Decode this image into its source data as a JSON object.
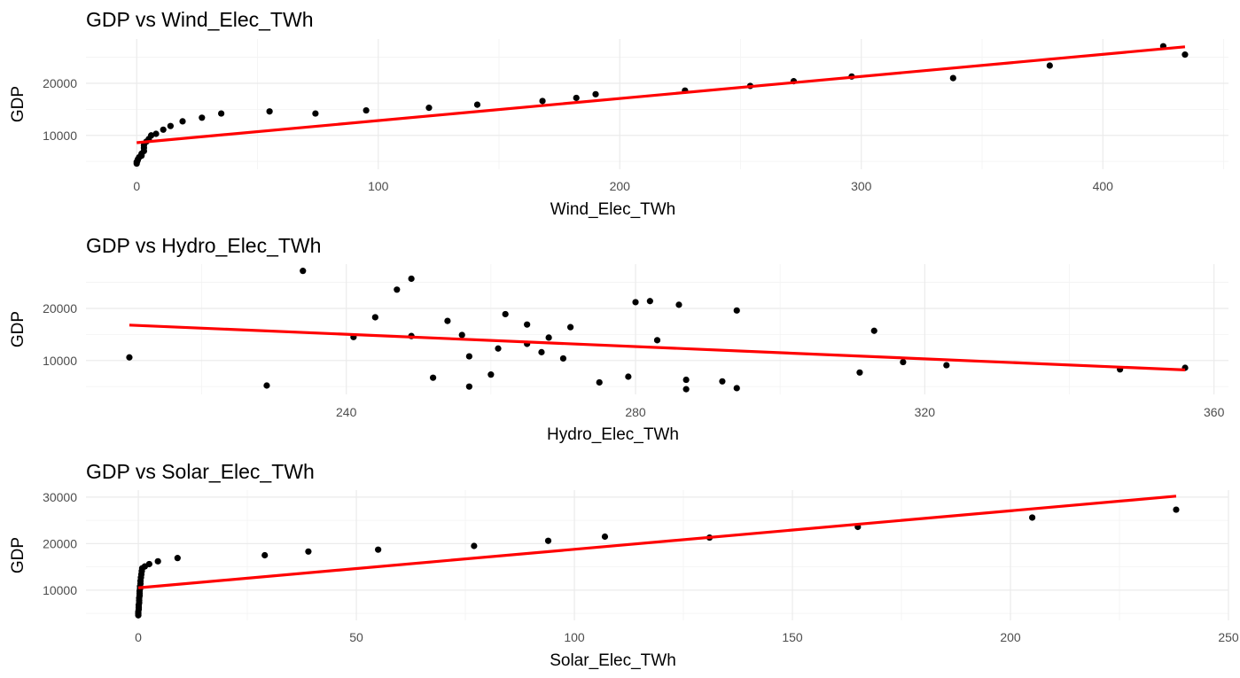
{
  "chart_data": [
    {
      "type": "scatter",
      "title": "GDP vs Wind_Elec_TWh",
      "xlabel": "Wind_Elec_TWh",
      "ylabel": "GDP",
      "x_ticks": [
        0,
        100,
        200,
        300,
        400
      ],
      "x_tick_labels": [
        "0",
        "100",
        "200",
        "300",
        "400"
      ],
      "y_ticks": [
        10000,
        20000
      ],
      "y_tick_labels": [
        "10000",
        "20000"
      ],
      "xlim": [
        -21,
        452
      ],
      "ylim": [
        3500,
        28500
      ],
      "grid": true,
      "point_color": "#000000",
      "points": [
        [
          0,
          4600
        ],
        [
          0,
          4900
        ],
        [
          0.3,
          5100
        ],
        [
          0.5,
          5400
        ],
        [
          1,
          5800
        ],
        [
          2,
          6100
        ],
        [
          2,
          6500
        ],
        [
          3,
          7000
        ],
        [
          3,
          7600
        ],
        [
          3,
          8100
        ],
        [
          4,
          8800
        ],
        [
          5,
          9300
        ],
        [
          6,
          10000
        ],
        [
          8,
          10300
        ],
        [
          11,
          11100
        ],
        [
          14,
          11800
        ],
        [
          19,
          12700
        ],
        [
          27,
          13400
        ],
        [
          35,
          14200
        ],
        [
          55,
          14600
        ],
        [
          74,
          14200
        ],
        [
          95,
          14800
        ],
        [
          121,
          15300
        ],
        [
          141,
          15900
        ],
        [
          168,
          16600
        ],
        [
          182,
          17200
        ],
        [
          190,
          17900
        ],
        [
          227,
          18600
        ],
        [
          254,
          19500
        ],
        [
          272,
          20400
        ],
        [
          296,
          21300
        ],
        [
          338,
          21000
        ],
        [
          378,
          23400
        ],
        [
          425,
          27100
        ],
        [
          434,
          25500
        ]
      ],
      "fit": {
        "x": [
          0,
          434
        ],
        "y": [
          8600,
          27000
        ],
        "color": "#ff0000"
      }
    },
    {
      "type": "scatter",
      "title": "GDP vs Hydro_Elec_TWh",
      "xlabel": "Hydro_Elec_TWh",
      "ylabel": "GDP",
      "x_ticks": [
        240,
        280,
        320,
        360
      ],
      "x_tick_labels": [
        "240",
        "280",
        "320",
        "360"
      ],
      "y_ticks": [
        10000,
        20000
      ],
      "y_tick_labels": [
        "10000",
        "20000"
      ],
      "xlim": [
        204,
        362
      ],
      "ylim": [
        3500,
        28500
      ],
      "grid": true,
      "point_color": "#000000",
      "points": [
        [
          210,
          10600
        ],
        [
          229,
          5200
        ],
        [
          234,
          27200
        ],
        [
          241,
          14500
        ],
        [
          244,
          18300
        ],
        [
          247,
          23600
        ],
        [
          249,
          25700
        ],
        [
          249,
          14700
        ],
        [
          252,
          6700
        ],
        [
          254,
          17600
        ],
        [
          256,
          14900
        ],
        [
          257,
          10800
        ],
        [
          257,
          5000
        ],
        [
          260,
          7300
        ],
        [
          261,
          12300
        ],
        [
          262,
          18900
        ],
        [
          265,
          16900
        ],
        [
          265,
          13200
        ],
        [
          267,
          11600
        ],
        [
          268,
          14400
        ],
        [
          270,
          10400
        ],
        [
          271,
          16400
        ],
        [
          275,
          5800
        ],
        [
          279,
          6900
        ],
        [
          280,
          21200
        ],
        [
          282,
          21400
        ],
        [
          283,
          13900
        ],
        [
          286,
          20700
        ],
        [
          287,
          6300
        ],
        [
          287,
          4500
        ],
        [
          292,
          6000
        ],
        [
          294,
          19600
        ],
        [
          294,
          4700
        ],
        [
          311,
          7700
        ],
        [
          313,
          15700
        ],
        [
          317,
          9700
        ],
        [
          323,
          9100
        ],
        [
          347,
          8300
        ],
        [
          356,
          8600
        ]
      ],
      "fit": {
        "x": [
          210,
          356
        ],
        "y": [
          16800,
          8200
        ],
        "color": "#ff0000"
      }
    },
    {
      "type": "scatter",
      "title": "GDP vs Solar_Elec_TWh",
      "xlabel": "Solar_Elec_TWh",
      "ylabel": "GDP",
      "x_ticks": [
        0,
        50,
        100,
        150,
        200,
        250
      ],
      "x_tick_labels": [
        "0",
        "50",
        "100",
        "150",
        "200",
        "250"
      ],
      "y_ticks": [
        10000,
        20000,
        30000
      ],
      "y_tick_labels": [
        "10000",
        "20000",
        "30000"
      ],
      "xlim": [
        -12,
        250
      ],
      "ylim": [
        3500,
        31500
      ],
      "grid": true,
      "point_color": "#000000",
      "points": [
        [
          0,
          4600
        ],
        [
          0,
          5000
        ],
        [
          0,
          5400
        ],
        [
          0.1,
          5900
        ],
        [
          0.1,
          6300
        ],
        [
          0.1,
          6800
        ],
        [
          0.2,
          7300
        ],
        [
          0.2,
          7800
        ],
        [
          0.2,
          8300
        ],
        [
          0.3,
          8800
        ],
        [
          0.3,
          9300
        ],
        [
          0.3,
          9800
        ],
        [
          0.4,
          10300
        ],
        [
          0.4,
          10800
        ],
        [
          0.5,
          11400
        ],
        [
          0.5,
          12000
        ],
        [
          0.6,
          12700
        ],
        [
          0.7,
          13400
        ],
        [
          0.8,
          14100
        ],
        [
          0.9,
          14700
        ],
        [
          1.5,
          15100
        ],
        [
          2.5,
          15600
        ],
        [
          4.5,
          16200
        ],
        [
          9,
          16900
        ],
        [
          29,
          17500
        ],
        [
          39,
          18300
        ],
        [
          55,
          18700
        ],
        [
          77,
          19500
        ],
        [
          94,
          20600
        ],
        [
          107,
          21500
        ],
        [
          131,
          21300
        ],
        [
          165,
          23600
        ],
        [
          205,
          25600
        ],
        [
          238,
          27300
        ]
      ],
      "fit": {
        "x": [
          0,
          238
        ],
        "y": [
          10500,
          30200
        ],
        "color": "#ff0000"
      }
    }
  ]
}
